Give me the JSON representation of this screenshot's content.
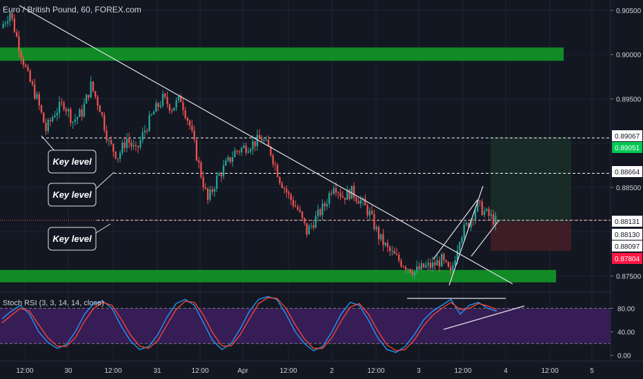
{
  "header": {
    "title": "Euro / British Pound, 60, FOREX.com",
    "rsi_title": "Stoch RSI (3, 3, 14, 14, close)"
  },
  "colors": {
    "background": "#131722",
    "up": "#26a69a",
    "down": "#ef5350",
    "zone": "#118b26",
    "rsi_band": "#3d1f5e",
    "k_line": "#2196f3",
    "d_line": "#f44336",
    "trend": "#e0e3eb",
    "target": "#00c853",
    "stop": "#ff1744"
  },
  "chart_data": [
    {
      "type": "candlestick",
      "title": "Euro / British Pound, 60, FOREX.com",
      "ylim": [
        0.8735,
        0.906
      ],
      "y_ticks": [
        "0.90500",
        "0.90000",
        "0.89500",
        "0.88500",
        "0.87500"
      ],
      "x_ticks": [
        "12:00",
        "30",
        "12:00",
        "31",
        "12:00",
        "Apr",
        "12:00",
        "2",
        "12:00",
        "3",
        "12:00",
        "4",
        "12:00",
        "5"
      ],
      "price_labels": [
        {
          "value": "0.89067",
          "style": "plain"
        },
        {
          "value": "0.89051",
          "style": "target"
        },
        {
          "value": "0.88664",
          "style": "plain"
        },
        {
          "value": "0.88131",
          "style": "current"
        },
        {
          "value": "0.88130",
          "style": "plain"
        },
        {
          "value": "0.88097",
          "style": "plain"
        },
        {
          "value": "0.87804",
          "style": "stop"
        }
      ],
      "key_levels": [
        0.8906,
        0.8866,
        0.8813
      ],
      "zones": [
        {
          "from": 0.8993,
          "to": 0.9008
        },
        {
          "from": 0.8743,
          "to": 0.8757
        }
      ],
      "annotations": [
        "Key level",
        "Key level",
        "Key level"
      ],
      "current_price": 0.88131,
      "target_price": 0.89051,
      "stop_price": 0.87804,
      "close_path": [
        0.903,
        0.9048,
        0.901,
        0.8975,
        0.895,
        0.8915,
        0.8935,
        0.8945,
        0.8925,
        0.8935,
        0.8965,
        0.894,
        0.89,
        0.8885,
        0.8905,
        0.889,
        0.8915,
        0.8935,
        0.895,
        0.894,
        0.895,
        0.892,
        0.8875,
        0.8835,
        0.886,
        0.8875,
        0.889,
        0.8895,
        0.89,
        0.8905,
        0.889,
        0.886,
        0.884,
        0.8825,
        0.88,
        0.8815,
        0.883,
        0.8855,
        0.884,
        0.8845,
        0.8835,
        0.882,
        0.8795,
        0.878,
        0.877,
        0.8762,
        0.8755,
        0.876,
        0.8762,
        0.8768,
        0.8752,
        0.8795,
        0.881,
        0.883,
        0.882,
        0.8812
      ]
    },
    {
      "type": "line",
      "title": "Stoch RSI (3, 3, 14, 14, close)",
      "ylim": [
        -5,
        105
      ],
      "y_ticks": [
        "80.00",
        "40.00",
        "0.00"
      ],
      "band": [
        20,
        80
      ],
      "series": [
        {
          "values": [
            62,
            75,
            85,
            70,
            40,
            22,
            12,
            18,
            40,
            70,
            88,
            92,
            80,
            50,
            25,
            10,
            15,
            35,
            65,
            88,
            95,
            85,
            55,
            25,
            10,
            20,
            45,
            75,
            95,
            100,
            95,
            70,
            40,
            20,
            8,
            15,
            40,
            70,
            90,
            85,
            60,
            30,
            10,
            5,
            15,
            35,
            60,
            75,
            85,
            95,
            70,
            85,
            90,
            80,
            75
          ]
        },
        {
          "values": [
            55,
            68,
            80,
            75,
            52,
            30,
            16,
            15,
            30,
            58,
            80,
            90,
            85,
            62,
            35,
            16,
            12,
            25,
            52,
            78,
            92,
            90,
            68,
            38,
            16,
            16,
            35,
            62,
            88,
            98,
            97,
            80,
            52,
            28,
            12,
            12,
            30,
            58,
            82,
            88,
            70,
            42,
            18,
            8,
            10,
            26,
            50,
            68,
            80,
            90,
            78,
            80,
            88,
            84,
            78
          ]
        }
      ]
    }
  ]
}
